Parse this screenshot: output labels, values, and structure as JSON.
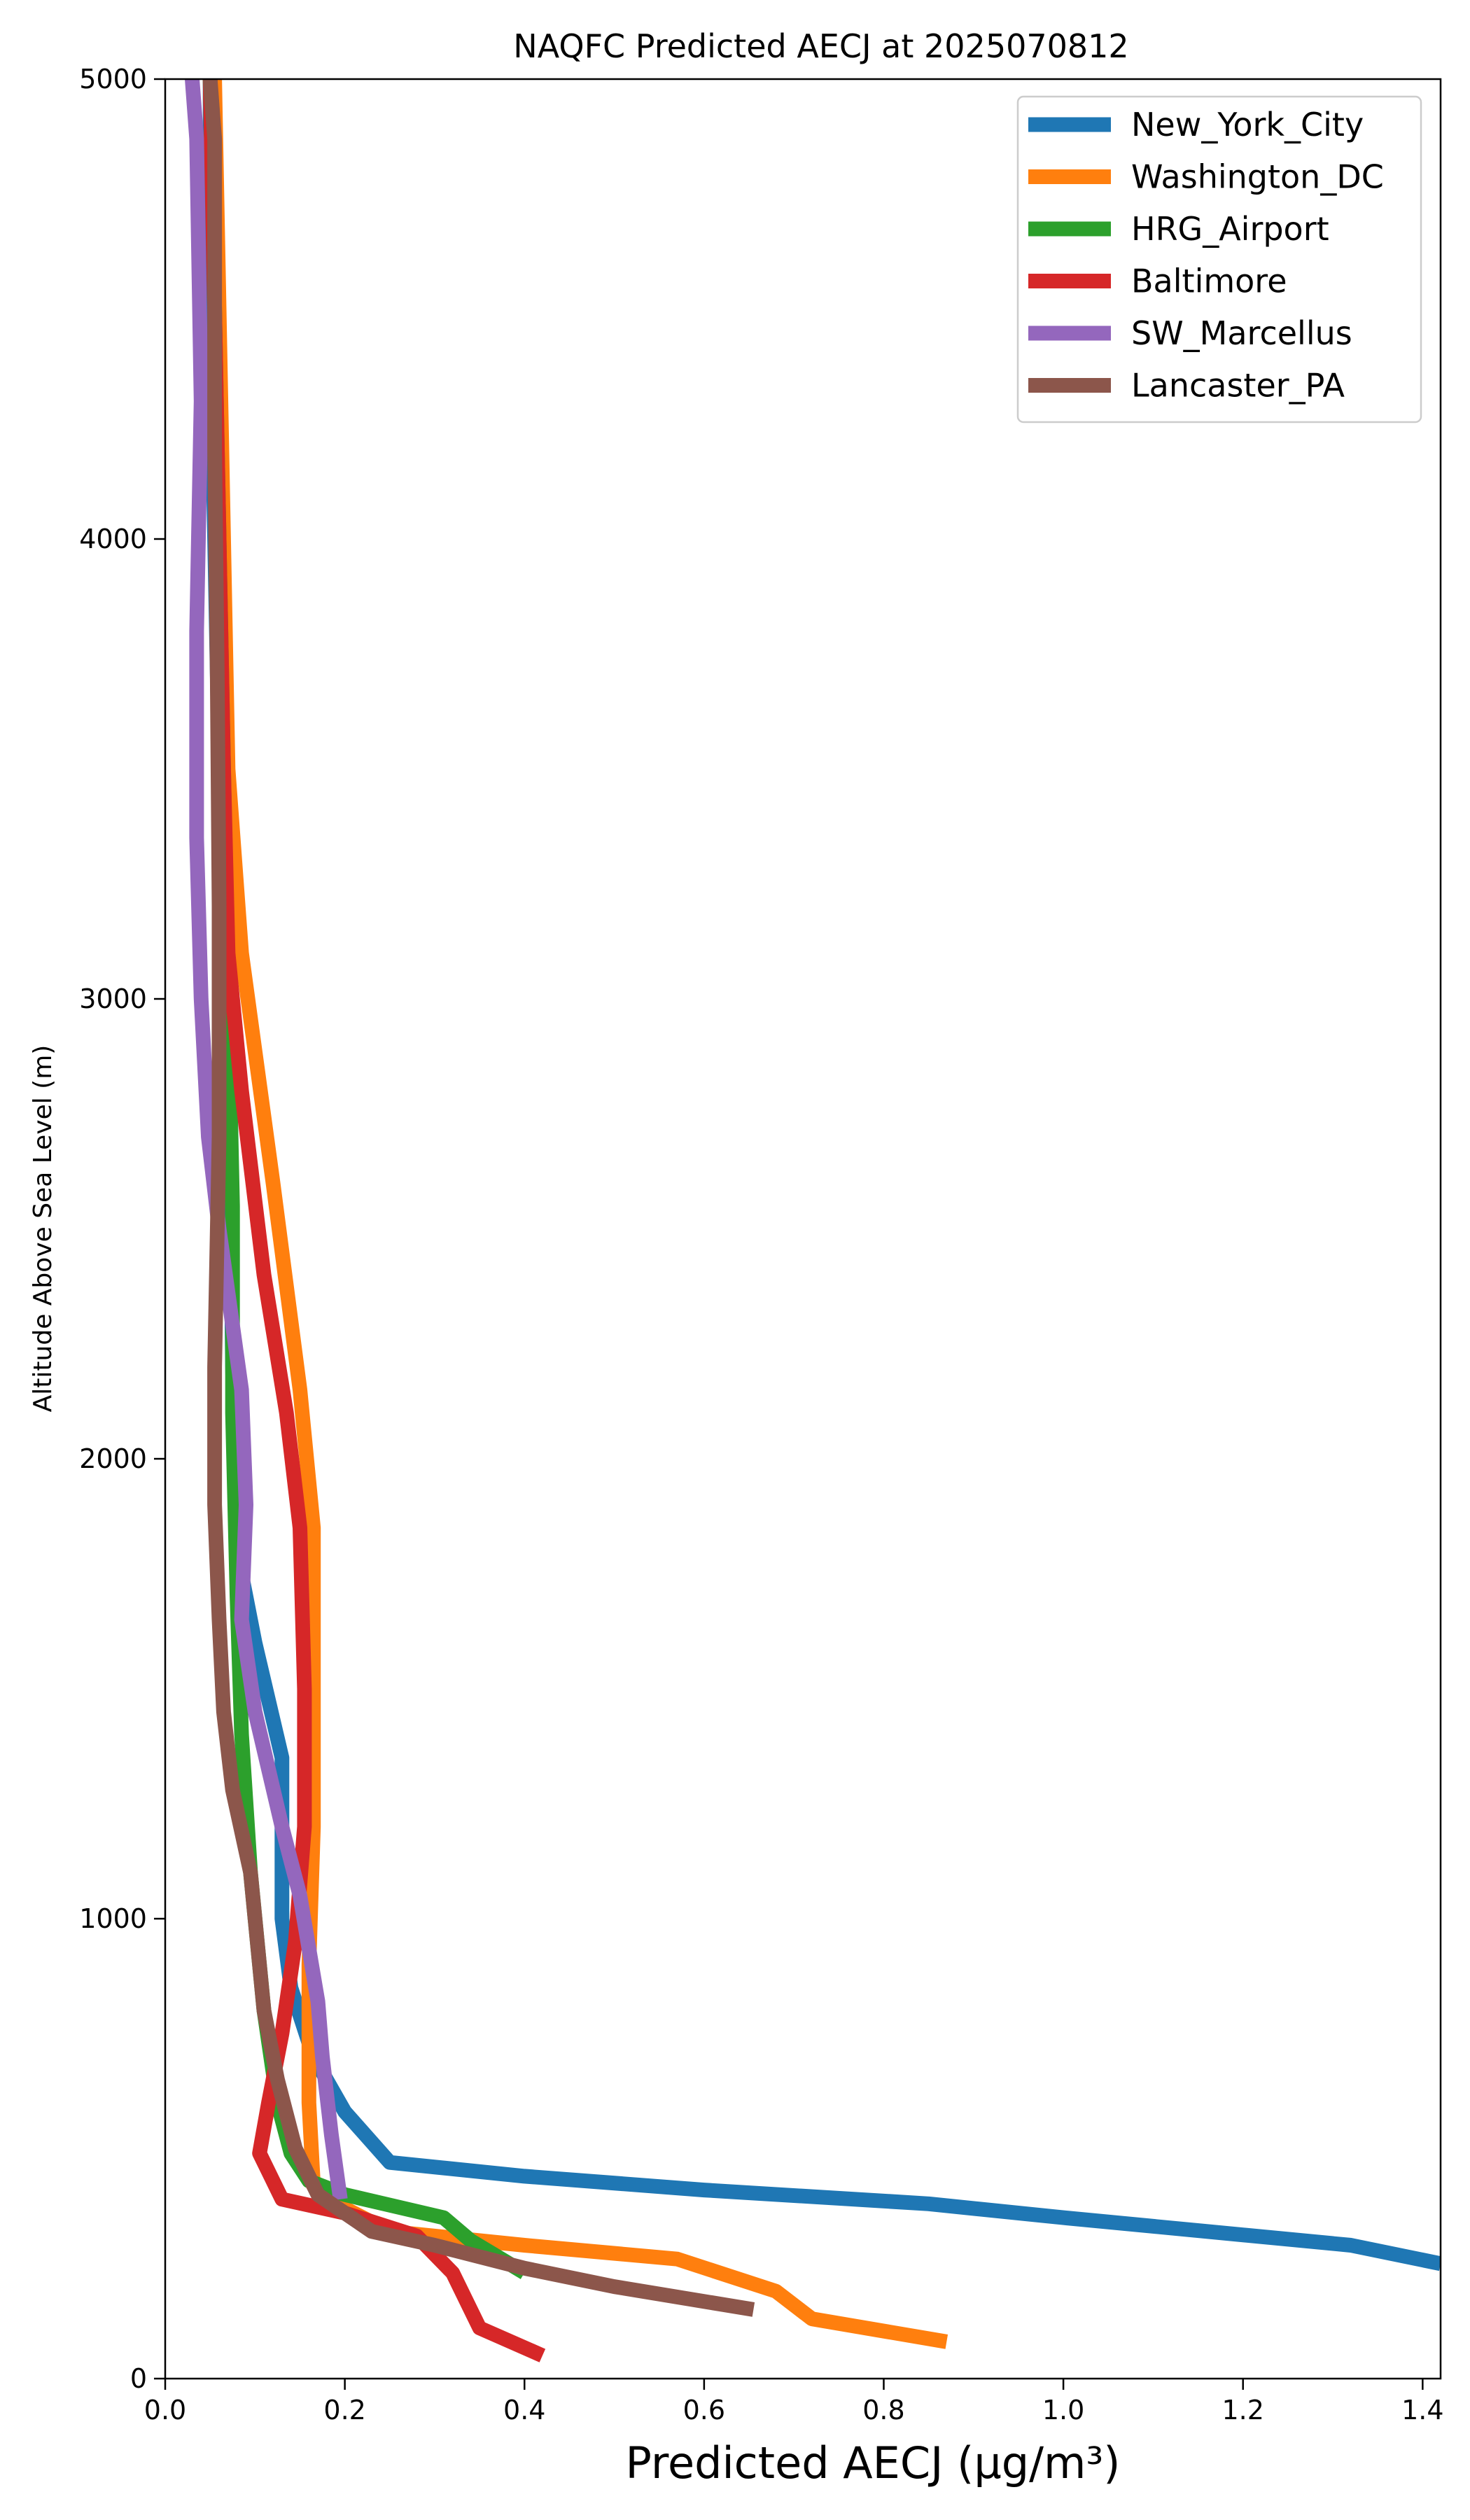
{
  "chart_data": {
    "type": "line",
    "title": "NAQFC Predicted AECJ at 2025070812",
    "xlabel": "Predicted AECJ (μg/m³)",
    "ylabel": "Altitude Above Sea Level (m)",
    "xlim": [
      0,
      1.42
    ],
    "ylim": [
      0,
      5000
    ],
    "xticks": [
      0.0,
      0.2,
      0.4,
      0.6,
      0.8,
      1.0,
      1.2,
      1.4
    ],
    "xtick_labels": [
      "0.0",
      "0.2",
      "0.4",
      "0.6",
      "0.8",
      "1.0",
      "1.2",
      "1.4"
    ],
    "yticks": [
      0,
      1000,
      2000,
      3000,
      4000,
      5000
    ],
    "ytick_labels": [
      "0",
      "1000",
      "2000",
      "3000",
      "4000",
      "5000"
    ],
    "grid": false,
    "legend_position": "top-right",
    "series": [
      {
        "name": "New_York_City",
        "color": "#1f77b4",
        "points": [
          [
            1.42,
            250
          ],
          [
            1.32,
            290
          ],
          [
            1.0,
            350
          ],
          [
            0.85,
            380
          ],
          [
            0.6,
            410
          ],
          [
            0.4,
            440
          ],
          [
            0.25,
            470
          ],
          [
            0.2,
            580
          ],
          [
            0.165,
            700
          ],
          [
            0.14,
            850
          ],
          [
            0.13,
            1000
          ],
          [
            0.13,
            1350
          ],
          [
            0.1,
            1600
          ],
          [
            0.08,
            1800
          ],
          [
            0.075,
            2200
          ],
          [
            0.07,
            3000
          ],
          [
            0.06,
            3500
          ],
          [
            0.055,
            4000
          ],
          [
            0.05,
            4500
          ],
          [
            0.05,
            5000
          ]
        ]
      },
      {
        "name": "Washington_DC",
        "color": "#ff7f0e",
        "points": [
          [
            0.87,
            80
          ],
          [
            0.72,
            130
          ],
          [
            0.68,
            190
          ],
          [
            0.57,
            260
          ],
          [
            0.4,
            290
          ],
          [
            0.25,
            320
          ],
          [
            0.19,
            380
          ],
          [
            0.165,
            420
          ],
          [
            0.16,
            600
          ],
          [
            0.16,
            900
          ],
          [
            0.165,
            1200
          ],
          [
            0.165,
            1600
          ],
          [
            0.165,
            1850
          ],
          [
            0.15,
            2150
          ],
          [
            0.12,
            2600
          ],
          [
            0.085,
            3100
          ],
          [
            0.07,
            3500
          ],
          [
            0.065,
            4000
          ],
          [
            0.06,
            4500
          ],
          [
            0.055,
            5000
          ]
        ]
      },
      {
        "name": "HRG_Airport",
        "color": "#2ca02c",
        "points": [
          [
            0.4,
            230
          ],
          [
            0.34,
            300
          ],
          [
            0.31,
            350
          ],
          [
            0.2,
            400
          ],
          [
            0.16,
            430
          ],
          [
            0.14,
            490
          ],
          [
            0.125,
            600
          ],
          [
            0.11,
            800
          ],
          [
            0.095,
            1100
          ],
          [
            0.085,
            1400
          ],
          [
            0.08,
            1700
          ],
          [
            0.075,
            2100
          ],
          [
            0.075,
            2550
          ],
          [
            0.07,
            3000
          ],
          [
            0.065,
            3500
          ],
          [
            0.06,
            4000
          ],
          [
            0.055,
            4500
          ],
          [
            0.05,
            5000
          ]
        ]
      },
      {
        "name": "Baltimore",
        "color": "#d62728",
        "points": [
          [
            0.42,
            50
          ],
          [
            0.35,
            110
          ],
          [
            0.32,
            230
          ],
          [
            0.28,
            310
          ],
          [
            0.2,
            360
          ],
          [
            0.13,
            390
          ],
          [
            0.105,
            490
          ],
          [
            0.115,
            600
          ],
          [
            0.13,
            750
          ],
          [
            0.145,
            950
          ],
          [
            0.155,
            1200
          ],
          [
            0.155,
            1500
          ],
          [
            0.15,
            1850
          ],
          [
            0.135,
            2100
          ],
          [
            0.11,
            2400
          ],
          [
            0.085,
            2800
          ],
          [
            0.07,
            3100
          ],
          [
            0.065,
            3500
          ],
          [
            0.06,
            4000
          ],
          [
            0.055,
            4500
          ],
          [
            0.05,
            5000
          ]
        ]
      },
      {
        "name": "SW_Marcellus",
        "color": "#9467bd",
        "points": [
          [
            0.195,
            390
          ],
          [
            0.185,
            530
          ],
          [
            0.175,
            700
          ],
          [
            0.17,
            820
          ],
          [
            0.15,
            1050
          ],
          [
            0.13,
            1200
          ],
          [
            0.1,
            1450
          ],
          [
            0.085,
            1650
          ],
          [
            0.09,
            1900
          ],
          [
            0.085,
            2150
          ],
          [
            0.06,
            2500
          ],
          [
            0.048,
            2700
          ],
          [
            0.04,
            3000
          ],
          [
            0.035,
            3350
          ],
          [
            0.035,
            3800
          ],
          [
            0.04,
            4300
          ],
          [
            0.035,
            4870
          ],
          [
            0.03,
            5000
          ]
        ]
      },
      {
        "name": "Lancaster_PA",
        "color": "#8c564b",
        "points": [
          [
            0.655,
            150
          ],
          [
            0.5,
            200
          ],
          [
            0.4,
            240
          ],
          [
            0.3,
            290
          ],
          [
            0.23,
            320
          ],
          [
            0.17,
            400
          ],
          [
            0.145,
            500
          ],
          [
            0.125,
            650
          ],
          [
            0.11,
            800
          ],
          [
            0.095,
            1100
          ],
          [
            0.075,
            1280
          ],
          [
            0.065,
            1450
          ],
          [
            0.06,
            1650
          ],
          [
            0.055,
            1900
          ],
          [
            0.055,
            2200
          ],
          [
            0.06,
            2700
          ],
          [
            0.06,
            3200
          ],
          [
            0.058,
            3700
          ],
          [
            0.055,
            4200
          ],
          [
            0.055,
            4870
          ],
          [
            0.05,
            5000
          ]
        ]
      }
    ]
  }
}
